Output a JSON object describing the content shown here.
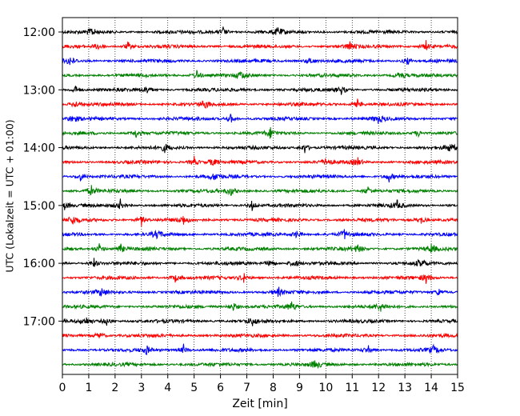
{
  "chart_data": {
    "type": "line",
    "title": "",
    "xlabel": "Zeit  [min]",
    "ylabel": "UTC (Lokalzeit = UTC + 01:00)",
    "xlim": [
      0,
      15
    ],
    "x_ticks": [
      0,
      1,
      2,
      3,
      4,
      5,
      6,
      7,
      8,
      9,
      10,
      11,
      12,
      13,
      14,
      15
    ],
    "y_tick_labels": [
      "12:00",
      "13:00",
      "14:00",
      "15:00",
      "16:00",
      "17:00"
    ],
    "y_tick_rows": [
      0,
      4,
      8,
      12,
      16,
      20
    ],
    "grid": "vertical-dotted",
    "series_colors": [
      "#000000",
      "#ff0000",
      "#0000ff",
      "#008000"
    ],
    "rows": [
      {
        "start": "12:00",
        "spikes": [
          1.1,
          6.1,
          8.2
        ]
      },
      {
        "start": "12:15",
        "spikes": [
          1.4,
          2.5,
          10.9,
          13.8
        ]
      },
      {
        "start": "12:30",
        "spikes": [
          0.3,
          9.4,
          13.1
        ]
      },
      {
        "start": "12:45",
        "spikes": [
          5.1,
          6.8,
          12.8
        ]
      },
      {
        "start": "13:00",
        "spikes": [
          0.5,
          3.2,
          10.6
        ]
      },
      {
        "start": "13:15",
        "spikes": [
          0.5,
          5.4,
          11.2
        ]
      },
      {
        "start": "13:30",
        "spikes": [
          0.4,
          6.4,
          12.0
        ]
      },
      {
        "start": "13:45",
        "spikes": [
          2.8,
          7.9,
          13.5
        ]
      },
      {
        "start": "14:00",
        "spikes": [
          3.9,
          9.2,
          14.7
        ]
      },
      {
        "start": "14:15",
        "spikes": [
          5.0,
          5.7,
          10.0,
          11.2
        ]
      },
      {
        "start": "14:30",
        "spikes": [
          0.7,
          5.8,
          12.4
        ]
      },
      {
        "start": "14:45",
        "spikes": [
          1.1,
          6.4,
          11.6
        ]
      },
      {
        "start": "15:00",
        "spikes": [
          0.1,
          2.2,
          7.2,
          12.7
        ]
      },
      {
        "start": "15:15",
        "spikes": [
          0.4,
          3.0,
          4.6,
          13.6
        ]
      },
      {
        "start": "15:30",
        "spikes": [
          3.6,
          8.9,
          10.7
        ]
      },
      {
        "start": "15:45",
        "spikes": [
          1.4,
          2.2,
          11.2,
          14.0
        ]
      },
      {
        "start": "16:00",
        "spikes": [
          1.2,
          7.9,
          8.8,
          13.6
        ]
      },
      {
        "start": "16:15",
        "spikes": [
          4.3,
          6.9,
          13.8
        ]
      },
      {
        "start": "16:30",
        "spikes": [
          1.5,
          8.2,
          14.3
        ]
      },
      {
        "start": "16:45",
        "spikes": [
          6.5,
          8.7,
          12.1
        ]
      },
      {
        "start": "17:00",
        "spikes": [
          0.9,
          1.7,
          7.2
        ]
      },
      {
        "start": "17:15",
        "spikes": [
          1.4
        ]
      },
      {
        "start": "17:30",
        "spikes": [
          3.2,
          4.6,
          11.6,
          14.1
        ]
      },
      {
        "start": "17:45",
        "spikes": [
          9.6
        ]
      }
    ]
  }
}
